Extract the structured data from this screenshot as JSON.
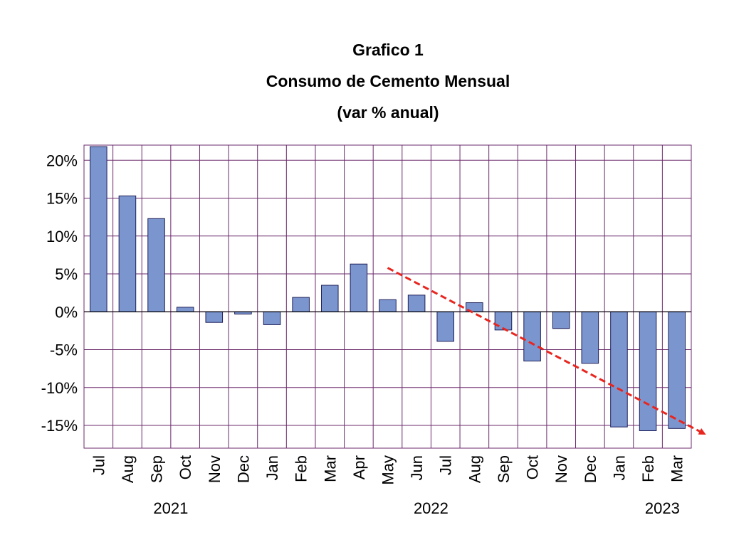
{
  "chart_data": {
    "type": "bar",
    "title": "Grafico 1",
    "subtitle": "Consumo de Cemento Mensual",
    "units_note": "(var % anual)",
    "categories": [
      "Jul",
      "Aug",
      "Sep",
      "Oct",
      "Nov",
      "Dec",
      "Jan",
      "Feb",
      "Mar",
      "Apr",
      "May",
      "Jun",
      "Jul",
      "Aug",
      "Sep",
      "Oct",
      "Nov",
      "Dec",
      "Jan",
      "Feb",
      "Mar"
    ],
    "values": [
      21.8,
      15.3,
      12.3,
      0.6,
      -1.4,
      -0.3,
      -1.7,
      1.9,
      3.5,
      6.3,
      1.6,
      2.2,
      -3.9,
      1.2,
      -2.4,
      -6.5,
      -2.2,
      -6.8,
      -15.2,
      -15.7,
      -15.4
    ],
    "year_labels": [
      {
        "label": "2021",
        "category_index": 2.5
      },
      {
        "label": "2022",
        "category_index": 11.5
      },
      {
        "label": "2023",
        "category_index": 19.5
      }
    ],
    "yticks": [
      20,
      15,
      10,
      5,
      0,
      -5,
      -10,
      -15
    ],
    "ytick_labels": [
      "20%",
      "15%",
      "10%",
      "5%",
      "0%",
      "-5%",
      "-10%",
      "-15%"
    ],
    "ylim": [
      -18,
      22
    ],
    "grid": true,
    "colors": {
      "bar": "#7b96cf",
      "bar_edge": "#1f1f5a",
      "grid": "#6b2a6b",
      "trend": "#e8261f"
    },
    "trendline": {
      "from": {
        "category_index": 10,
        "value": 5.8
      },
      "to": {
        "category_index": 20.9,
        "value": -16.0
      },
      "style": "dashed",
      "arrow": true
    }
  }
}
